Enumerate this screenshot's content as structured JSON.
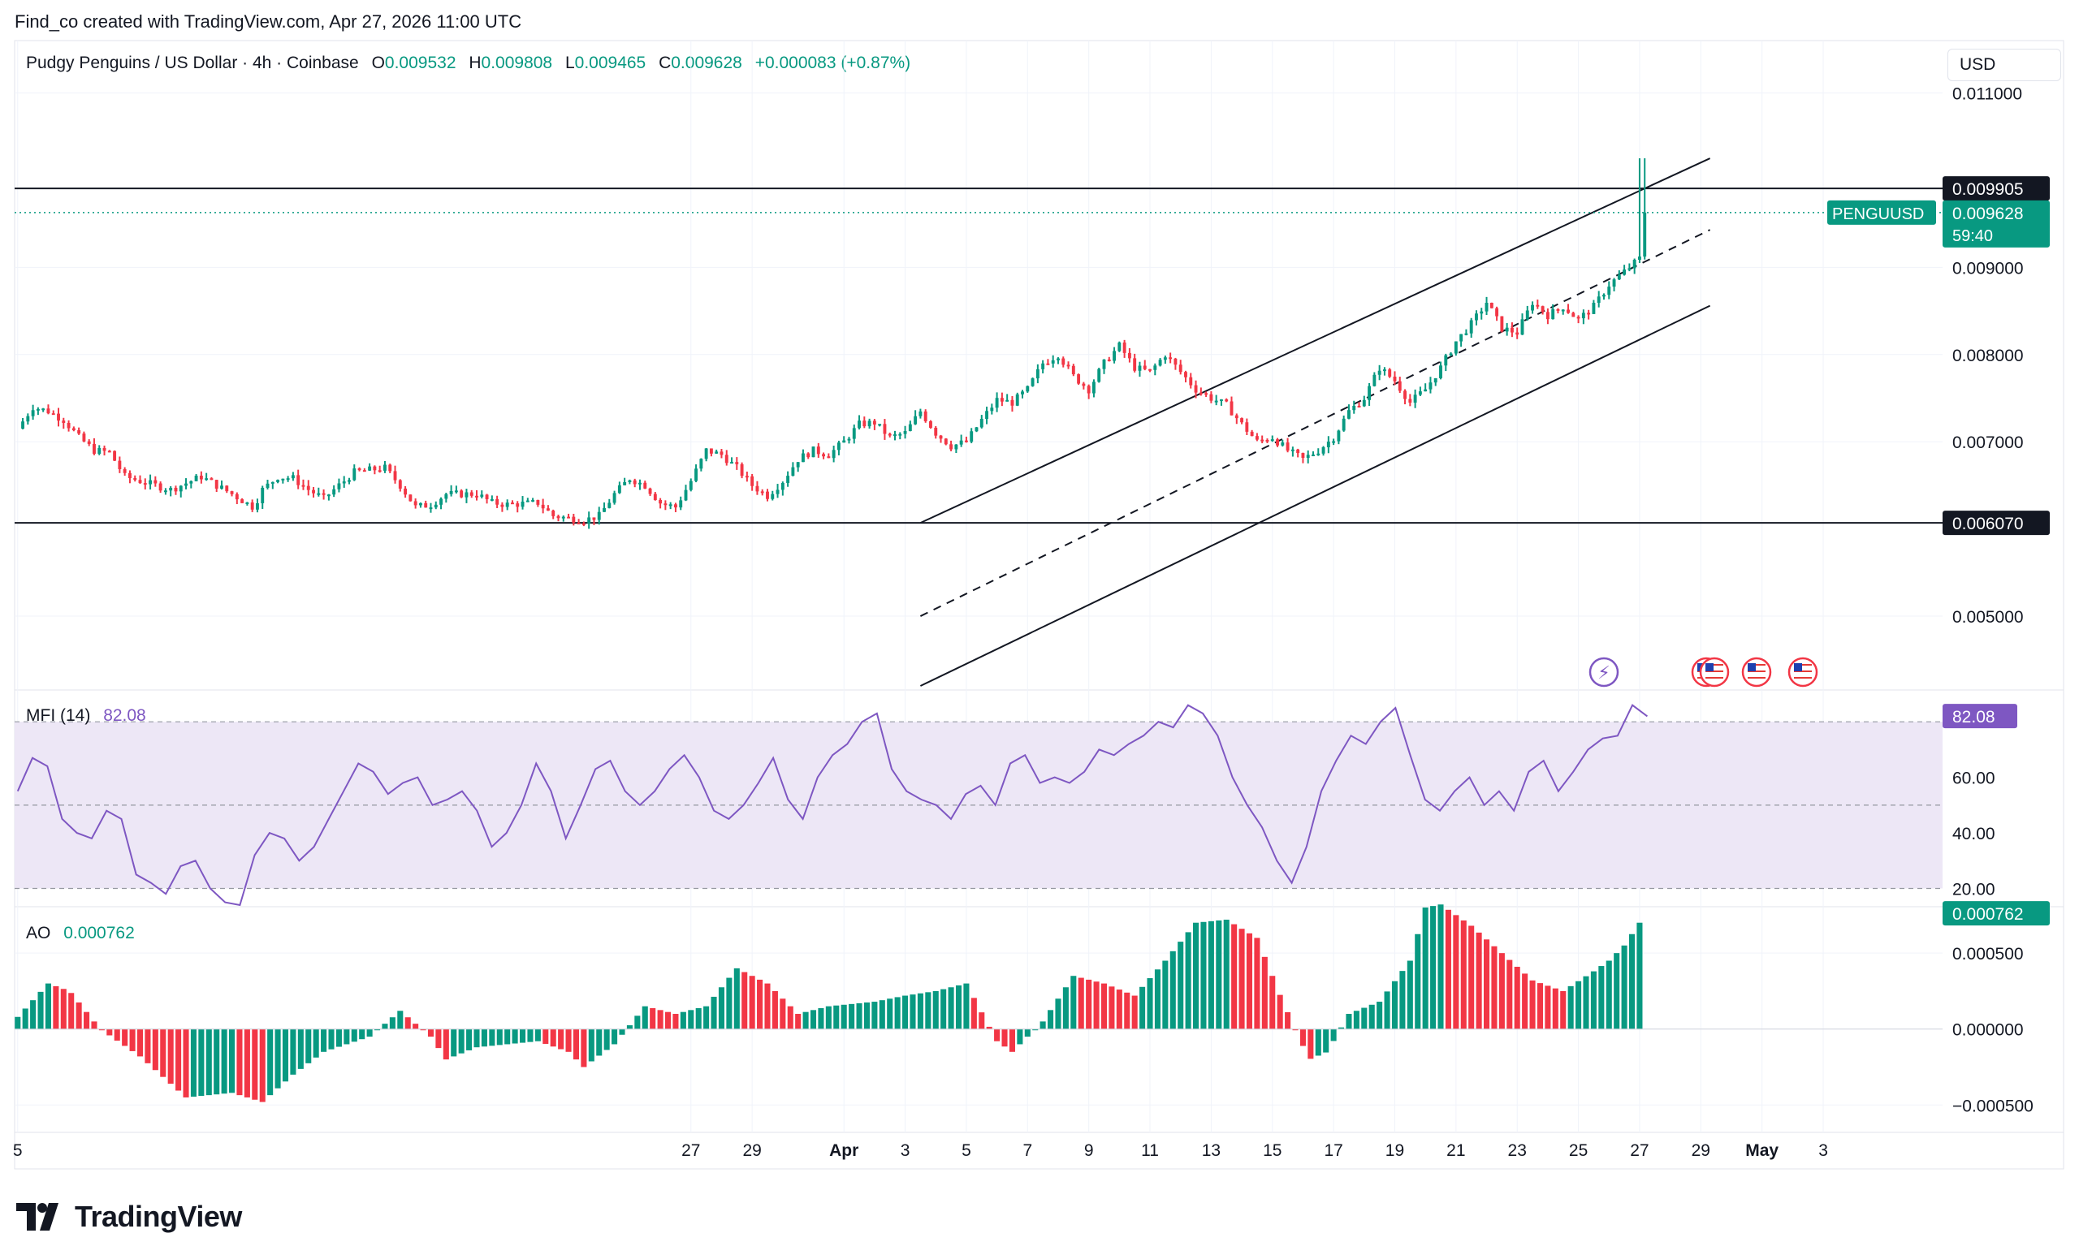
{
  "header": {
    "credit": "Find_co created with TradingView.com, Apr 27, 2026 11:00 UTC"
  },
  "legend": {
    "title": "Pudgy Penguins / US Dollar · 4h · Coinbase",
    "o_label": "O",
    "o": "0.009532",
    "h_label": "H",
    "h": "0.009808",
    "l_label": "L",
    "l": "0.009465",
    "c_label": "C",
    "c": "0.009628",
    "change": "+0.000083 (+0.87%)"
  },
  "currency_button": "USD",
  "symbol_tag": "PENGUUSD",
  "countdown": "59:40",
  "colors": {
    "up": "#089981",
    "down": "#f23645",
    "mfi": "#7e57c2",
    "mfi_band": "#ede7f6",
    "text": "#131722",
    "grid": "#f0f3fa"
  },
  "icons": [
    "lightning-event-icon",
    "us-flag-event-icon",
    "us-flag-event-icon",
    "us-flag-event-icon",
    "us-flag-event-icon"
  ],
  "mfi": {
    "label": "MFI (14)",
    "value": "82.08",
    "ticks": [
      "60.00",
      "40.00",
      "20.00"
    ]
  },
  "ao": {
    "label": "AO",
    "value": "0.000762",
    "ticks": [
      "0.000500",
      "0.000000",
      "−0.000500"
    ]
  },
  "brand": {
    "name": "TradingView"
  },
  "chart_data": [
    {
      "type": "candlestick",
      "title": "Pudgy Penguins / US Dollar · 4h · Coinbase",
      "y_axis_labels": [
        "0.011000",
        "0.009000",
        "0.008000",
        "0.007000",
        "0.005000"
      ],
      "ylim": [
        0.0042,
        0.0116
      ],
      "x_tick_labels": [
        "5",
        "27",
        "29",
        "Apr",
        "3",
        "5",
        "7",
        "9",
        "11",
        "13",
        "15",
        "17",
        "19",
        "21",
        "23",
        "25",
        "27",
        "29",
        "May",
        "3"
      ],
      "x_tick_days": [
        -26,
        -4,
        -2,
        1,
        3,
        5,
        7,
        9,
        11,
        13,
        15,
        17,
        19,
        21,
        23,
        25,
        27,
        29,
        31,
        33
      ],
      "xlim_days": [
        -26.1,
        36.9
      ],
      "last_price": 0.009628,
      "horizontal_levels": [
        {
          "value": 0.009905,
          "label": "0.009905"
        },
        {
          "value": 0.00607,
          "label": "0.006070"
        }
      ],
      "channel": {
        "start_day": 3.5,
        "end_day": 29.3,
        "upper": [
          0.00607,
          0.01025
        ],
        "middle": [
          0.005,
          0.00943
        ],
        "lower": [
          0.0042,
          0.00856
        ]
      },
      "anchors": [
        [
          -26,
          0.00715
        ],
        [
          -25.5,
          0.0074
        ],
        [
          -25,
          0.00735
        ],
        [
          -24.5,
          0.00725
        ],
        [
          -24,
          0.00705
        ],
        [
          -23.5,
          0.0069
        ],
        [
          -23,
          0.00688
        ],
        [
          -22.5,
          0.0066
        ],
        [
          -22,
          0.00655
        ],
        [
          -21,
          0.00645
        ],
        [
          -20,
          0.0066
        ],
        [
          -19.5,
          0.0065
        ],
        [
          -19,
          0.0064
        ],
        [
          -18.3,
          0.00625
        ],
        [
          -18,
          0.00645
        ],
        [
          -17.5,
          0.0066
        ],
        [
          -17,
          0.00658
        ],
        [
          -16.5,
          0.00645
        ],
        [
          -16,
          0.00635
        ],
        [
          -15.5,
          0.0065
        ],
        [
          -15,
          0.00665
        ],
        [
          -14,
          0.0067
        ],
        [
          -13.5,
          0.0065
        ],
        [
          -13,
          0.00625
        ],
        [
          -12.5,
          0.00628
        ],
        [
          -12,
          0.0064
        ],
        [
          -11,
          0.0064
        ],
        [
          -10.5,
          0.0063
        ],
        [
          -10,
          0.00628
        ],
        [
          -9,
          0.0063
        ],
        [
          -8.5,
          0.00615
        ],
        [
          -7.5,
          0.0061
        ],
        [
          -7,
          0.00615
        ],
        [
          -6.5,
          0.0064
        ],
        [
          -6,
          0.00658
        ],
        [
          -5.5,
          0.0065
        ],
        [
          -5,
          0.0063
        ],
        [
          -4.5,
          0.00625
        ],
        [
          -4,
          0.00655
        ],
        [
          -3.5,
          0.0069
        ],
        [
          -3,
          0.00685
        ],
        [
          -2.5,
          0.0067
        ],
        [
          -2,
          0.0065
        ],
        [
          -1.5,
          0.00638
        ],
        [
          -1,
          0.00655
        ],
        [
          -0.5,
          0.0068
        ],
        [
          0,
          0.0069
        ],
        [
          0.5,
          0.00685
        ],
        [
          1,
          0.007
        ],
        [
          1.5,
          0.0072
        ],
        [
          2,
          0.00722
        ],
        [
          2.5,
          0.00705
        ],
        [
          3,
          0.0071
        ],
        [
          3.5,
          0.00735
        ],
        [
          4,
          0.0071
        ],
        [
          4.5,
          0.00695
        ],
        [
          5,
          0.007
        ],
        [
          5.5,
          0.00725
        ],
        [
          6,
          0.00748
        ],
        [
          6.5,
          0.00745
        ],
        [
          7,
          0.0076
        ],
        [
          7.5,
          0.0079
        ],
        [
          8,
          0.008
        ],
        [
          8.5,
          0.00775
        ],
        [
          9,
          0.0076
        ],
        [
          9.5,
          0.0079
        ],
        [
          10,
          0.0081
        ],
        [
          10.5,
          0.00785
        ],
        [
          11,
          0.0078
        ],
        [
          11.5,
          0.008
        ],
        [
          12,
          0.0078
        ],
        [
          12.5,
          0.0076
        ],
        [
          13,
          0.0075
        ],
        [
          13.5,
          0.00742
        ],
        [
          14,
          0.0072
        ],
        [
          14.5,
          0.007
        ],
        [
          15,
          0.00705
        ],
        [
          15.5,
          0.0069
        ],
        [
          16,
          0.0068
        ],
        [
          16.5,
          0.0069
        ],
        [
          17,
          0.00705
        ],
        [
          17.5,
          0.00735
        ],
        [
          18,
          0.0075
        ],
        [
          18.5,
          0.00785
        ],
        [
          19,
          0.0077
        ],
        [
          19.5,
          0.00745
        ],
        [
          20,
          0.0076
        ],
        [
          20.5,
          0.00785
        ],
        [
          21,
          0.00815
        ],
        [
          21.5,
          0.00835
        ],
        [
          22,
          0.0086
        ],
        [
          22.5,
          0.0083
        ],
        [
          23,
          0.00825
        ],
        [
          23.5,
          0.0086
        ],
        [
          24,
          0.00845
        ],
        [
          24.5,
          0.00855
        ],
        [
          25,
          0.0084
        ],
        [
          25.5,
          0.00855
        ],
        [
          26,
          0.0088
        ],
        [
          26.5,
          0.00895
        ],
        [
          27,
          0.0091
        ],
        [
          27.15,
          0.0096
        ],
        [
          27.25,
          0.00963
        ]
      ]
    },
    {
      "type": "line",
      "title": "MFI (14)",
      "series": [
        {
          "name": "MFI (14)",
          "last": 82.08
        }
      ],
      "ylim": [
        14,
        90
      ],
      "band": [
        20,
        80
      ],
      "midline": 50,
      "values": [
        55,
        67,
        64,
        45,
        40,
        38,
        48,
        45,
        25,
        22,
        18,
        28,
        30,
        20,
        15,
        14,
        32,
        40,
        38,
        30,
        35,
        45,
        55,
        65,
        62,
        54,
        58,
        60,
        50,
        52,
        55,
        48,
        35,
        40,
        50,
        65,
        55,
        38,
        50,
        63,
        66,
        55,
        50,
        55,
        63,
        68,
        60,
        48,
        45,
        50,
        58,
        67,
        52,
        45,
        60,
        68,
        72,
        80,
        83,
        63,
        55,
        52,
        50,
        45,
        54,
        57,
        50,
        65,
        68,
        58,
        60,
        58,
        62,
        70,
        68,
        72,
        75,
        80,
        78,
        86,
        83,
        75,
        60,
        50,
        42,
        30,
        22,
        35,
        55,
        66,
        75,
        72,
        80,
        85,
        68,
        52,
        48,
        55,
        60,
        50,
        55,
        48,
        62,
        66,
        55,
        62,
        70,
        74,
        75,
        86,
        82
      ],
      "y_tick_labels": [
        "60.00",
        "40.00",
        "20.00"
      ]
    },
    {
      "type": "bar",
      "title": "AO",
      "series": [
        {
          "name": "AO",
          "last": 0.000762
        }
      ],
      "ylim": [
        -0.00068,
        0.0008
      ],
      "y_tick_labels": [
        "0.000500",
        "0.000000",
        "−0.000500"
      ],
      "anchors": [
        [
          -26,
          8e-05
        ],
        [
          -25,
          0.0003
        ],
        [
          -24.3,
          0.00025
        ],
        [
          -23.3,
          0.0
        ],
        [
          -22,
          -0.00018
        ],
        [
          -20.5,
          -0.00045
        ],
        [
          -19,
          -0.00042
        ],
        [
          -18,
          -0.00048
        ],
        [
          -17,
          -0.0003
        ],
        [
          -16,
          -0.00015
        ],
        [
          -14.5,
          -5e-05
        ],
        [
          -13.5,
          0.00012
        ],
        [
          -12.5,
          -5e-05
        ],
        [
          -12,
          -0.0002
        ],
        [
          -11,
          -0.00012
        ],
        [
          -9,
          -8e-05
        ],
        [
          -8,
          -0.00015
        ],
        [
          -7.5,
          -0.00025
        ],
        [
          -6.5,
          -0.0001
        ],
        [
          -5.5,
          0.00015
        ],
        [
          -4.5,
          0.0001
        ],
        [
          -3.5,
          0.00015
        ],
        [
          -2.5,
          0.0004
        ],
        [
          -1.5,
          0.0003
        ],
        [
          -0.5,
          0.0001
        ],
        [
          0.5,
          0.00015
        ],
        [
          2,
          0.00018
        ],
        [
          3,
          0.00022
        ],
        [
          4,
          0.00025
        ],
        [
          5,
          0.0003
        ],
        [
          6,
          -8e-05
        ],
        [
          6.5,
          -0.00015
        ],
        [
          7.5,
          5e-05
        ],
        [
          8.5,
          0.00035
        ],
        [
          9.5,
          0.0003
        ],
        [
          10.5,
          0.00022
        ],
        [
          11.5,
          0.00045
        ],
        [
          12.5,
          0.0007
        ],
        [
          13.5,
          0.00072
        ],
        [
          14.5,
          0.0006
        ],
        [
          15.3,
          0.0002
        ],
        [
          16.2,
          -0.0002
        ],
        [
          16.8,
          -0.00015
        ],
        [
          17.5,
          0.0001
        ],
        [
          18.5,
          0.00018
        ],
        [
          19.5,
          0.00045
        ],
        [
          20,
          0.0008
        ],
        [
          20.5,
          0.00082
        ],
        [
          21.5,
          0.00068
        ],
        [
          22.5,
          0.0005
        ],
        [
          23.5,
          0.00032
        ],
        [
          24.5,
          0.00025
        ],
        [
          25.5,
          0.00038
        ],
        [
          26,
          0.00045
        ],
        [
          26.5,
          0.00055
        ],
        [
          27.2,
          0.00076
        ]
      ]
    }
  ]
}
